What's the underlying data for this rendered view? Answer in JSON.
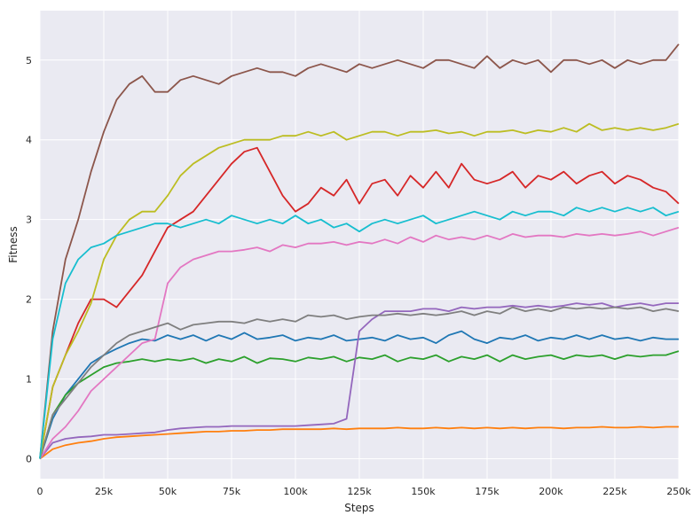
{
  "chart_data": {
    "type": "line",
    "title": "",
    "xlabel": "Steps",
    "ylabel": "Fitness",
    "xlim": [
      0,
      250000
    ],
    "ylim": [
      -0.25,
      5.62
    ],
    "grid": true,
    "legend": "none",
    "x_ticks": [
      {
        "value": 0,
        "label": "0"
      },
      {
        "value": 25000,
        "label": "25k"
      },
      {
        "value": 50000,
        "label": "50k"
      },
      {
        "value": 75000,
        "label": "75k"
      },
      {
        "value": 100000,
        "label": "100k"
      },
      {
        "value": 125000,
        "label": "125k"
      },
      {
        "value": 150000,
        "label": "150k"
      },
      {
        "value": 175000,
        "label": "175k"
      },
      {
        "value": 200000,
        "label": "200k"
      },
      {
        "value": 225000,
        "label": "225k"
      },
      {
        "value": 250000,
        "label": "250k"
      }
    ],
    "y_ticks": [
      {
        "value": 0,
        "label": "0"
      },
      {
        "value": 1,
        "label": "1"
      },
      {
        "value": 2,
        "label": "2"
      },
      {
        "value": 3,
        "label": "3"
      },
      {
        "value": 4,
        "label": "4"
      },
      {
        "value": 5,
        "label": "5"
      }
    ],
    "x": [
      0,
      5000,
      10000,
      15000,
      20000,
      25000,
      30000,
      35000,
      40000,
      45000,
      50000,
      55000,
      60000,
      65000,
      70000,
      75000,
      80000,
      85000,
      90000,
      95000,
      100000,
      105000,
      110000,
      115000,
      120000,
      125000,
      130000,
      135000,
      140000,
      145000,
      150000,
      155000,
      160000,
      165000,
      170000,
      175000,
      180000,
      185000,
      190000,
      195000,
      200000,
      205000,
      210000,
      215000,
      220000,
      225000,
      230000,
      235000,
      240000,
      245000,
      250000
    ],
    "series": [
      {
        "color": "#1f77b4",
        "values": [
          0.0,
          0.5,
          0.8,
          1.0,
          1.2,
          1.3,
          1.38,
          1.45,
          1.5,
          1.48,
          1.55,
          1.5,
          1.55,
          1.48,
          1.55,
          1.5,
          1.58,
          1.5,
          1.52,
          1.55,
          1.48,
          1.52,
          1.5,
          1.55,
          1.48,
          1.5,
          1.52,
          1.48,
          1.55,
          1.5,
          1.52,
          1.45,
          1.55,
          1.6,
          1.5,
          1.45,
          1.52,
          1.5,
          1.55,
          1.48,
          1.52,
          1.5,
          1.55,
          1.5,
          1.55,
          1.5,
          1.52,
          1.48,
          1.52,
          1.5,
          1.5
        ]
      },
      {
        "color": "#ff7f0e",
        "values": [
          0.0,
          0.12,
          0.17,
          0.2,
          0.22,
          0.25,
          0.27,
          0.28,
          0.29,
          0.3,
          0.31,
          0.32,
          0.33,
          0.34,
          0.34,
          0.35,
          0.35,
          0.36,
          0.36,
          0.37,
          0.37,
          0.37,
          0.37,
          0.38,
          0.37,
          0.38,
          0.38,
          0.38,
          0.39,
          0.38,
          0.38,
          0.39,
          0.38,
          0.39,
          0.38,
          0.39,
          0.38,
          0.39,
          0.38,
          0.39,
          0.39,
          0.38,
          0.39,
          0.39,
          0.4,
          0.39,
          0.39,
          0.4,
          0.39,
          0.4,
          0.4
        ]
      },
      {
        "color": "#2ca02c",
        "values": [
          0.0,
          0.55,
          0.8,
          0.95,
          1.05,
          1.15,
          1.2,
          1.22,
          1.25,
          1.22,
          1.25,
          1.23,
          1.26,
          1.2,
          1.25,
          1.22,
          1.28,
          1.2,
          1.26,
          1.25,
          1.22,
          1.27,
          1.25,
          1.28,
          1.22,
          1.27,
          1.25,
          1.3,
          1.22,
          1.27,
          1.25,
          1.3,
          1.22,
          1.28,
          1.25,
          1.3,
          1.22,
          1.3,
          1.25,
          1.28,
          1.3,
          1.25,
          1.3,
          1.28,
          1.3,
          1.25,
          1.3,
          1.28,
          1.3,
          1.3,
          1.35
        ]
      },
      {
        "color": "#d62728",
        "values": [
          0.0,
          0.9,
          1.3,
          1.7,
          2.0,
          2.0,
          1.9,
          2.1,
          2.3,
          2.6,
          2.9,
          3.0,
          3.1,
          3.3,
          3.5,
          3.7,
          3.85,
          3.9,
          3.6,
          3.3,
          3.1,
          3.2,
          3.4,
          3.3,
          3.5,
          3.2,
          3.45,
          3.5,
          3.3,
          3.55,
          3.4,
          3.6,
          3.4,
          3.7,
          3.5,
          3.45,
          3.5,
          3.6,
          3.4,
          3.55,
          3.5,
          3.6,
          3.45,
          3.55,
          3.6,
          3.45,
          3.55,
          3.5,
          3.4,
          3.35,
          3.2
        ]
      },
      {
        "color": "#9467bd",
        "values": [
          0.0,
          0.2,
          0.25,
          0.27,
          0.28,
          0.3,
          0.3,
          0.31,
          0.32,
          0.33,
          0.36,
          0.38,
          0.39,
          0.4,
          0.4,
          0.41,
          0.41,
          0.41,
          0.41,
          0.41,
          0.41,
          0.42,
          0.43,
          0.44,
          0.5,
          1.6,
          1.75,
          1.85,
          1.85,
          1.85,
          1.88,
          1.88,
          1.85,
          1.9,
          1.88,
          1.9,
          1.9,
          1.92,
          1.9,
          1.92,
          1.9,
          1.92,
          1.95,
          1.93,
          1.95,
          1.9,
          1.93,
          1.95,
          1.92,
          1.95,
          1.95
        ]
      },
      {
        "color": "#8c564b",
        "values": [
          0.0,
          1.6,
          2.5,
          3.0,
          3.6,
          4.1,
          4.5,
          4.7,
          4.8,
          4.6,
          4.6,
          4.75,
          4.8,
          4.75,
          4.7,
          4.8,
          4.85,
          4.9,
          4.85,
          4.85,
          4.8,
          4.9,
          4.95,
          4.9,
          4.85,
          4.95,
          4.9,
          4.95,
          5.0,
          4.95,
          4.9,
          5.0,
          5.0,
          4.95,
          4.9,
          5.05,
          4.9,
          5.0,
          4.95,
          5.0,
          4.85,
          5.0,
          5.0,
          4.95,
          5.0,
          4.9,
          5.0,
          4.95,
          5.0,
          5.0,
          5.2
        ]
      },
      {
        "color": "#e377c2",
        "values": [
          0.0,
          0.25,
          0.4,
          0.6,
          0.85,
          1.0,
          1.15,
          1.3,
          1.45,
          1.5,
          2.2,
          2.4,
          2.5,
          2.55,
          2.6,
          2.6,
          2.62,
          2.65,
          2.6,
          2.68,
          2.65,
          2.7,
          2.7,
          2.72,
          2.68,
          2.72,
          2.7,
          2.75,
          2.7,
          2.78,
          2.72,
          2.8,
          2.75,
          2.78,
          2.75,
          2.8,
          2.75,
          2.82,
          2.78,
          2.8,
          2.8,
          2.78,
          2.82,
          2.8,
          2.82,
          2.8,
          2.82,
          2.85,
          2.8,
          2.85,
          2.9
        ]
      },
      {
        "color": "#7f7f7f",
        "values": [
          0.0,
          0.55,
          0.75,
          0.95,
          1.15,
          1.3,
          1.45,
          1.55,
          1.6,
          1.65,
          1.7,
          1.62,
          1.68,
          1.7,
          1.72,
          1.72,
          1.7,
          1.75,
          1.72,
          1.75,
          1.72,
          1.8,
          1.78,
          1.8,
          1.75,
          1.78,
          1.8,
          1.8,
          1.82,
          1.8,
          1.82,
          1.8,
          1.82,
          1.85,
          1.8,
          1.85,
          1.82,
          1.9,
          1.85,
          1.88,
          1.85,
          1.9,
          1.88,
          1.9,
          1.88,
          1.9,
          1.88,
          1.9,
          1.85,
          1.88,
          1.85
        ]
      },
      {
        "color": "#bcbd22",
        "values": [
          0.0,
          0.9,
          1.3,
          1.6,
          1.95,
          2.5,
          2.8,
          3.0,
          3.1,
          3.1,
          3.3,
          3.55,
          3.7,
          3.8,
          3.9,
          3.95,
          4.0,
          4.0,
          4.0,
          4.05,
          4.05,
          4.1,
          4.05,
          4.1,
          4.0,
          4.05,
          4.1,
          4.1,
          4.05,
          4.1,
          4.1,
          4.12,
          4.08,
          4.1,
          4.05,
          4.1,
          4.1,
          4.12,
          4.08,
          4.12,
          4.1,
          4.15,
          4.1,
          4.2,
          4.12,
          4.15,
          4.12,
          4.15,
          4.12,
          4.15,
          4.2
        ]
      },
      {
        "color": "#17becf",
        "values": [
          0.0,
          1.5,
          2.2,
          2.5,
          2.65,
          2.7,
          2.8,
          2.85,
          2.9,
          2.95,
          2.95,
          2.9,
          2.95,
          3.0,
          2.95,
          3.05,
          3.0,
          2.95,
          3.0,
          2.95,
          3.05,
          2.95,
          3.0,
          2.9,
          2.95,
          2.85,
          2.95,
          3.0,
          2.95,
          3.0,
          3.05,
          2.95,
          3.0,
          3.05,
          3.1,
          3.05,
          3.0,
          3.1,
          3.05,
          3.1,
          3.1,
          3.05,
          3.15,
          3.1,
          3.15,
          3.1,
          3.15,
          3.1,
          3.15,
          3.05,
          3.1
        ]
      }
    ]
  }
}
